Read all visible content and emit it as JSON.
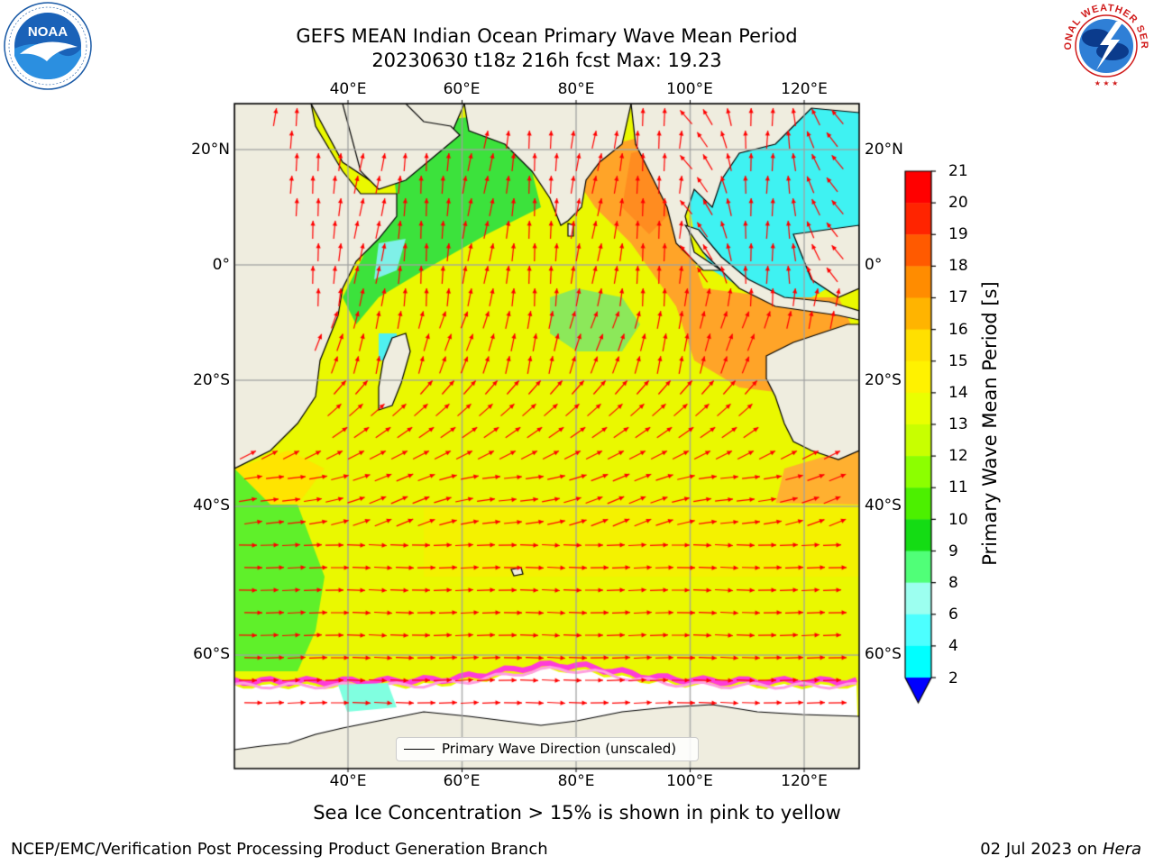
{
  "title": {
    "line1": "GEFS MEAN Indian Ocean Primary Wave Mean Period",
    "line2": "20230630 t18z 216h fcst   Max: 19.23"
  },
  "logos": {
    "left": "noaa-logo",
    "left_text": "NOAA",
    "right": "nws-logo",
    "right_text": "NATIONAL WEATHER SERVICE"
  },
  "map": {
    "region": "Indian Ocean",
    "lon_labels": [
      "40°E",
      "60°E",
      "80°E",
      "100°E",
      "120°E"
    ],
    "lat_labels_left": [
      "20°N",
      "0°",
      "20°S",
      "40°S",
      "60°S"
    ],
    "lat_labels_right": [
      "20°N",
      "0°",
      "20°S",
      "40°S",
      "60°S"
    ],
    "grid": true,
    "land_color": "#efeddf",
    "coastline_color": "#000000",
    "vector_color": "#ff0000"
  },
  "colorbar": {
    "label": "Primary Wave Mean Period [s]",
    "ticks": [
      "21",
      "20",
      "19",
      "18",
      "17",
      "16",
      "15",
      "14",
      "13",
      "12",
      "11",
      "10",
      "9",
      "8",
      "6",
      "4",
      "2"
    ],
    "colors": [
      "#ff0000",
      "#ff2400",
      "#ff5a00",
      "#ff8c00",
      "#ffb400",
      "#ffe000",
      "#fff200",
      "#eaff00",
      "#c8ff00",
      "#8cff00",
      "#4cf000",
      "#14dc14",
      "#50ff78",
      "#9cfff0",
      "#4cffff",
      "#00ffff",
      "#00c8ff",
      "#0078ff"
    ],
    "extend_color": "#0000ff"
  },
  "legend": {
    "label": "Primary Wave Direction (unscaled)"
  },
  "caption": "Sea Ice Concentration > 15% is shown in pink to yellow",
  "footer": {
    "left": "NCEP/EMC/Verification Post Processing Product Generation Branch",
    "right_prefix": "02 Jul 2023 on ",
    "right_italic": "Hera"
  }
}
